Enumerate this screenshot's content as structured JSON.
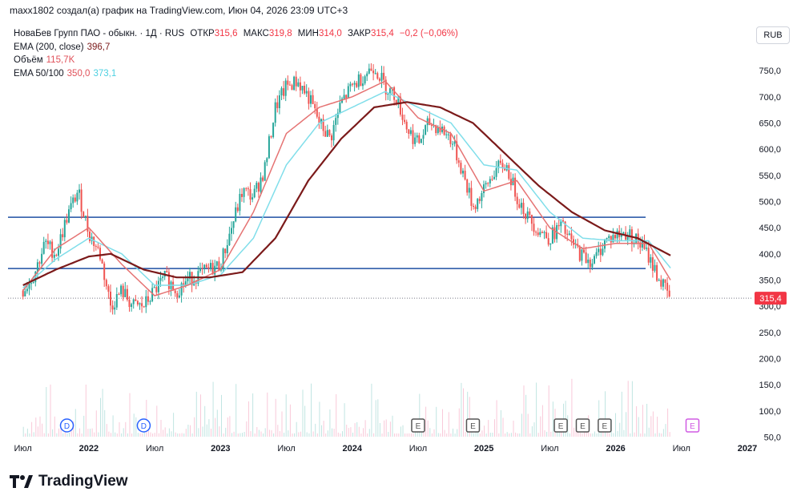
{
  "header": {
    "attribution": "maxx1802 создал(а) график на TradingView.com, Июн 04, 2026 23:09 UTC+3"
  },
  "legend": {
    "symbol": "НоваБев Групп ПАО - обыкн. · 1Д · RUS",
    "open_label": "ОТКР",
    "open_value": "315,6",
    "high_label": "МАКС",
    "high_value": "319,8",
    "low_label": "МИН",
    "low_value": "314,0",
    "close_label": "ЗАКР",
    "close_value": "315,4",
    "change": "−0,2 (−0,06%)",
    "ema200_label": "EMA (200, close)",
    "ema200_value": "396,7",
    "volume_label": "Объём",
    "volume_value": "115,7K",
    "ema50100_label": "EMA 50/100",
    "ema50_value": "350,0",
    "ema100_value": "373,1"
  },
  "currency_button": "RUB",
  "brand": "TradingView",
  "colors": {
    "up": "#26a69a",
    "down": "#ef5350",
    "ema200": "#7b1a1a",
    "ema50": "#e57373",
    "ema100": "#80deea",
    "hline": "#1e4fa3",
    "price_tag": "#f23645",
    "event_e": "#555555",
    "event_d": "#2962ff",
    "event_e_future": "#d05ce3"
  },
  "chart_data": {
    "type": "candlestick",
    "ylim": [
      50,
      800
    ],
    "y_ticks": [
      "750,0",
      "700,0",
      "650,0",
      "600,0",
      "550,0",
      "500,0",
      "450,0",
      "400,0",
      "350,0",
      "300,0",
      "250,0",
      "200,0",
      "150,0",
      "100,0",
      "50,0"
    ],
    "y_tick_values": [
      750,
      700,
      650,
      600,
      550,
      500,
      450,
      400,
      350,
      300,
      250,
      200,
      150,
      100,
      50
    ],
    "x_ticks": [
      {
        "label": "Июл",
        "bold": false
      },
      {
        "label": "2022",
        "bold": true
      },
      {
        "label": "Июл",
        "bold": false
      },
      {
        "label": "2023",
        "bold": true
      },
      {
        "label": "Июл",
        "bold": false
      },
      {
        "label": "2024",
        "bold": true
      },
      {
        "label": "Июл",
        "bold": false
      },
      {
        "label": "2025",
        "bold": true
      },
      {
        "label": "Июл",
        "bold": false
      },
      {
        "label": "2026",
        "bold": true
      },
      {
        "label": "Июл",
        "bold": false
      },
      {
        "label": "2027",
        "bold": true
      }
    ],
    "x_tick_dates": [
      "2021-07",
      "2022-01",
      "2022-07",
      "2023-01",
      "2023-07",
      "2024-01",
      "2024-07",
      "2025-01",
      "2025-07",
      "2026-01",
      "2026-07",
      "2027-01"
    ],
    "last_price": "315,4",
    "last_price_value": 315.4,
    "horizontal_levels": [
      470,
      372
    ],
    "price_path": [
      [
        "2021-07",
        330
      ],
      [
        "2021-08",
        360
      ],
      [
        "2021-09",
        420
      ],
      [
        "2021-10",
        400
      ],
      [
        "2021-11",
        470
      ],
      [
        "2021-12",
        520
      ],
      [
        "2022-01",
        440
      ],
      [
        "2022-02",
        400
      ],
      [
        "2022-03",
        300
      ],
      [
        "2022-04",
        330
      ],
      [
        "2022-05",
        300
      ],
      [
        "2022-06",
        300
      ],
      [
        "2022-07",
        330
      ],
      [
        "2022-08",
        355
      ],
      [
        "2022-09",
        330
      ],
      [
        "2022-10",
        350
      ],
      [
        "2022-11",
        360
      ],
      [
        "2022-12",
        370
      ],
      [
        "2023-01",
        380
      ],
      [
        "2023-02",
        450
      ],
      [
        "2023-03",
        520
      ],
      [
        "2023-04",
        510
      ],
      [
        "2023-05",
        560
      ],
      [
        "2023-06",
        680
      ],
      [
        "2023-07",
        720
      ],
      [
        "2023-08",
        730
      ],
      [
        "2023-09",
        700
      ],
      [
        "2023-10",
        650
      ],
      [
        "2023-11",
        620
      ],
      [
        "2023-12",
        690
      ],
      [
        "2024-01",
        720
      ],
      [
        "2024-02",
        740
      ],
      [
        "2024-03",
        760
      ],
      [
        "2024-04",
        720
      ],
      [
        "2024-05",
        700
      ],
      [
        "2024-06",
        640
      ],
      [
        "2024-07",
        610
      ],
      [
        "2024-08",
        650
      ],
      [
        "2024-09",
        640
      ],
      [
        "2024-10",
        620
      ],
      [
        "2024-11",
        560
      ],
      [
        "2024-12",
        490
      ],
      [
        "2025-01",
        520
      ],
      [
        "2025-02",
        560
      ],
      [
        "2025-03",
        570
      ],
      [
        "2025-04",
        510
      ],
      [
        "2025-05",
        470
      ],
      [
        "2025-06",
        445
      ],
      [
        "2025-07",
        430
      ],
      [
        "2025-08",
        455
      ],
      [
        "2025-09",
        420
      ],
      [
        "2025-10",
        395
      ],
      [
        "2025-11",
        385
      ],
      [
        "2025-12",
        425
      ],
      [
        "2026-01",
        435
      ],
      [
        "2026-02",
        440
      ],
      [
        "2026-03",
        425
      ],
      [
        "2026-04",
        395
      ],
      [
        "2026-05",
        350
      ],
      [
        "2026-06",
        315
      ]
    ],
    "ema200_path": [
      [
        "2021-07",
        340
      ],
      [
        "2021-10",
        370
      ],
      [
        "2022-01",
        395
      ],
      [
        "2022-03",
        400
      ],
      [
        "2022-06",
        370
      ],
      [
        "2022-09",
        355
      ],
      [
        "2022-12",
        355
      ],
      [
        "2023-03",
        365
      ],
      [
        "2023-06",
        430
      ],
      [
        "2023-09",
        540
      ],
      [
        "2023-12",
        620
      ],
      [
        "2024-03",
        680
      ],
      [
        "2024-06",
        690
      ],
      [
        "2024-09",
        680
      ],
      [
        "2024-12",
        650
      ],
      [
        "2025-03",
        590
      ],
      [
        "2025-06",
        530
      ],
      [
        "2025-09",
        480
      ],
      [
        "2025-12",
        445
      ],
      [
        "2026-03",
        430
      ],
      [
        "2026-06",
        397
      ]
    ],
    "ema50_path": [
      [
        "2021-07",
        330
      ],
      [
        "2021-10",
        410
      ],
      [
        "2022-01",
        450
      ],
      [
        "2022-04",
        380
      ],
      [
        "2022-07",
        320
      ],
      [
        "2022-10",
        340
      ],
      [
        "2023-01",
        370
      ],
      [
        "2023-04",
        480
      ],
      [
        "2023-07",
        630
      ],
      [
        "2023-10",
        680
      ],
      [
        "2024-01",
        700
      ],
      [
        "2024-04",
        730
      ],
      [
        "2024-07",
        660
      ],
      [
        "2024-10",
        630
      ],
      [
        "2025-01",
        520
      ],
      [
        "2025-04",
        540
      ],
      [
        "2025-07",
        450
      ],
      [
        "2025-10",
        410
      ],
      [
        "2026-01",
        420
      ],
      [
        "2026-04",
        420
      ],
      [
        "2026-06",
        350
      ]
    ],
    "ema100_path": [
      [
        "2021-07",
        335
      ],
      [
        "2021-10",
        390
      ],
      [
        "2022-01",
        430
      ],
      [
        "2022-04",
        400
      ],
      [
        "2022-07",
        340
      ],
      [
        "2022-10",
        340
      ],
      [
        "2023-01",
        360
      ],
      [
        "2023-04",
        430
      ],
      [
        "2023-07",
        570
      ],
      [
        "2023-10",
        650
      ],
      [
        "2024-01",
        680
      ],
      [
        "2024-04",
        710
      ],
      [
        "2024-07",
        680
      ],
      [
        "2024-10",
        650
      ],
      [
        "2025-01",
        570
      ],
      [
        "2025-04",
        560
      ],
      [
        "2025-07",
        480
      ],
      [
        "2025-10",
        430
      ],
      [
        "2026-01",
        425
      ],
      [
        "2026-04",
        425
      ],
      [
        "2026-06",
        373
      ]
    ],
    "events": [
      {
        "type": "D",
        "date": "2021-11"
      },
      {
        "type": "D",
        "date": "2022-06"
      },
      {
        "type": "E",
        "date": "2024-07"
      },
      {
        "type": "E",
        "date": "2024-12"
      },
      {
        "type": "E",
        "date": "2025-08"
      },
      {
        "type": "E",
        "date": "2025-10"
      },
      {
        "type": "E",
        "date": "2025-12"
      },
      {
        "type": "E",
        "date": "2026-08"
      }
    ]
  }
}
